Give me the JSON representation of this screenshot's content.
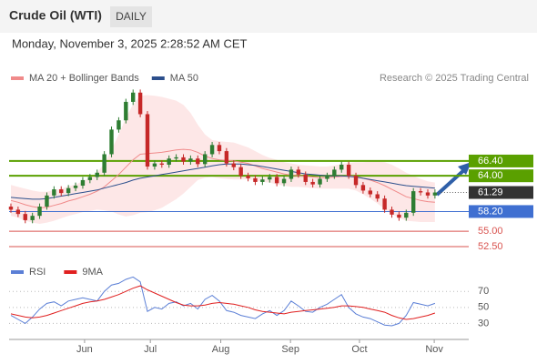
{
  "header": {
    "title": "Crude Oil (WTI)",
    "period": "DAILY",
    "timestamp": "Monday, November 3, 2025 2:28:52 AM CET",
    "credit": "Research © 2025 Trading Central"
  },
  "chart_data": [
    {
      "type": "candlestick",
      "x": [
        0,
        1,
        2,
        3,
        4,
        5,
        6,
        7,
        8,
        9,
        10,
        11,
        12,
        13,
        14,
        15,
        16,
        17,
        18,
        19,
        20,
        21,
        22,
        23,
        24,
        25,
        26,
        27,
        28,
        29,
        30,
        31,
        32,
        33,
        34,
        35,
        36,
        37,
        38,
        39,
        40,
        41,
        42,
        43,
        44,
        45,
        46,
        47,
        48,
        49,
        50,
        51,
        52,
        53,
        54,
        55,
        56,
        57,
        58,
        59
      ],
      "open": [
        59.0,
        58.5,
        57.8,
        56.8,
        57.5,
        59.0,
        60.8,
        61.8,
        61.2,
        62.0,
        62.4,
        63.3,
        63.8,
        64.5,
        67.5,
        71.5,
        73.0,
        76.0,
        77.5,
        74.0,
        65.5,
        66.0,
        65.8,
        66.8,
        67.0,
        66.3,
        66.8,
        65.9,
        67.5,
        69.0,
        68.0,
        66.0,
        65.4,
        64.0,
        63.6,
        63.0,
        63.4,
        63.8,
        62.8,
        63.5,
        65.0,
        64.2,
        63.0,
        62.6,
        63.5,
        64.0,
        65.0,
        65.8,
        64.0,
        62.5,
        61.6,
        61.0,
        60.3,
        58.5,
        57.7,
        57.2,
        58.0,
        61.5,
        61.3,
        60.8
      ],
      "high": [
        59.5,
        59.0,
        58.3,
        58.0,
        59.5,
        61.3,
        62.3,
        62.3,
        62.5,
        62.9,
        63.8,
        64.3,
        65.0,
        68.0,
        72.0,
        73.5,
        76.5,
        78.0,
        78.0,
        74.5,
        66.5,
        66.5,
        67.3,
        67.5,
        67.5,
        67.3,
        67.3,
        68.0,
        69.5,
        69.5,
        68.5,
        66.5,
        65.9,
        64.5,
        64.1,
        63.9,
        64.3,
        64.3,
        64.0,
        65.5,
        65.5,
        64.7,
        63.5,
        64.0,
        64.5,
        65.5,
        66.3,
        66.3,
        64.5,
        63.0,
        62.1,
        61.5,
        60.8,
        59.0,
        58.2,
        58.5,
        62.0,
        62.0,
        61.8,
        61.8
      ],
      "low": [
        58.0,
        57.3,
        56.3,
        56.3,
        57.0,
        58.5,
        60.3,
        60.7,
        60.7,
        61.5,
        61.9,
        62.8,
        63.3,
        64.0,
        67.0,
        71.0,
        72.5,
        75.5,
        73.5,
        65.0,
        65.0,
        65.3,
        65.3,
        66.3,
        65.8,
        65.8,
        65.4,
        65.4,
        67.0,
        67.5,
        65.5,
        64.9,
        63.5,
        63.1,
        62.5,
        62.5,
        62.9,
        62.3,
        62.3,
        63.0,
        63.7,
        62.5,
        62.1,
        62.1,
        63.0,
        63.5,
        64.5,
        63.5,
        62.0,
        61.1,
        60.5,
        59.8,
        58.0,
        57.2,
        56.7,
        56.7,
        57.5,
        60.8,
        60.3,
        60.3
      ],
      "close": [
        58.5,
        57.8,
        56.8,
        57.5,
        59.0,
        60.8,
        61.8,
        61.2,
        62.0,
        62.4,
        63.3,
        63.8,
        64.5,
        67.5,
        71.5,
        73.0,
        76.0,
        77.5,
        74.0,
        65.5,
        66.0,
        65.8,
        66.8,
        67.0,
        66.3,
        66.8,
        65.9,
        67.5,
        69.0,
        68.0,
        66.0,
        65.4,
        64.0,
        63.6,
        63.0,
        63.4,
        63.8,
        62.8,
        63.5,
        65.0,
        64.2,
        63.0,
        62.6,
        63.5,
        64.0,
        65.0,
        65.8,
        64.0,
        62.5,
        61.6,
        61.0,
        60.3,
        58.5,
        57.7,
        57.2,
        58.0,
        61.5,
        61.3,
        60.8,
        61.29
      ],
      "up_color": "#2e7d32",
      "down_color": "#c62828",
      "series": [
        {
          "name": "MA 20 + Bollinger Bands",
          "color": "#f08a8a",
          "band_color": "#fde3e3",
          "values": [
            60.0,
            59.7,
            59.3,
            59.0,
            58.8,
            58.9,
            59.2,
            59.5,
            59.9,
            60.2,
            60.6,
            61.0,
            61.5,
            62.2,
            63.2,
            64.2,
            65.4,
            66.6,
            67.5,
            67.6,
            67.7,
            67.8,
            68.0,
            68.2,
            68.3,
            68.2,
            67.8,
            67.2,
            66.8,
            66.6,
            66.5,
            66.4,
            66.2,
            66.0,
            65.6,
            65.2,
            64.9,
            64.6,
            64.3,
            64.1,
            64.0,
            63.9,
            63.8,
            63.7,
            63.7,
            63.8,
            63.9,
            64.0,
            63.9,
            63.6,
            63.3,
            62.9,
            62.4,
            61.8,
            61.2,
            60.6,
            60.3,
            60.0,
            59.8,
            59.7
          ],
          "upper": [
            62.5,
            62.2,
            61.9,
            61.6,
            61.4,
            61.4,
            61.7,
            61.9,
            62.3,
            62.6,
            63.1,
            63.7,
            64.5,
            66.0,
            68.2,
            70.7,
            73.4,
            75.6,
            77.0,
            77.1,
            77.0,
            76.8,
            76.5,
            76.2,
            75.5,
            74.2,
            72.3,
            70.7,
            69.8,
            69.6,
            69.5,
            69.4,
            69.0,
            68.6,
            68.0,
            67.4,
            66.9,
            66.6,
            66.2,
            66.0,
            65.8,
            65.7,
            65.6,
            65.5,
            65.5,
            65.7,
            65.9,
            66.1,
            66.2,
            66.2,
            66.3,
            66.3,
            66.2,
            65.8,
            65.2,
            64.5,
            64.0,
            63.5,
            63.1,
            62.9
          ],
          "lower": [
            57.5,
            57.2,
            56.7,
            56.4,
            56.2,
            56.4,
            56.7,
            57.1,
            57.5,
            57.8,
            58.1,
            58.3,
            58.5,
            58.4,
            58.2,
            57.7,
            57.4,
            57.6,
            58.0,
            58.1,
            58.4,
            58.8,
            59.5,
            60.2,
            61.1,
            62.2,
            63.3,
            63.7,
            63.8,
            63.6,
            63.5,
            63.4,
            63.4,
            63.4,
            63.2,
            63.0,
            62.9,
            62.6,
            62.4,
            62.2,
            62.2,
            62.1,
            62.0,
            61.9,
            61.9,
            61.9,
            61.9,
            61.9,
            61.6,
            61.0,
            60.3,
            59.5,
            58.6,
            57.8,
            57.2,
            56.7,
            56.6,
            56.5,
            56.5,
            56.5
          ]
        },
        {
          "name": "MA 50",
          "color": "#2c4f8c",
          "values": [
            60.5,
            60.4,
            60.3,
            60.2,
            60.2,
            60.3,
            60.5,
            60.7,
            60.9,
            61.1,
            61.3,
            61.5,
            61.7,
            62.0,
            62.3,
            62.6,
            62.9,
            63.3,
            63.6,
            63.8,
            64.0,
            64.2,
            64.4,
            64.6,
            64.8,
            65.0,
            65.2,
            65.4,
            65.6,
            65.8,
            65.9,
            65.9,
            65.9,
            65.8,
            65.7,
            65.5,
            65.3,
            65.1,
            64.9,
            64.7,
            64.5,
            64.3,
            64.2,
            64.1,
            64.0,
            64.0,
            64.0,
            63.9,
            63.8,
            63.6,
            63.4,
            63.2,
            63.0,
            62.8,
            62.6,
            62.4,
            62.3,
            62.2,
            62.1,
            62.0
          ]
        }
      ],
      "levels": [
        {
          "value": 66.4,
          "label": "66.40",
          "color": "#5aa000",
          "style": "box"
        },
        {
          "value": 64.0,
          "label": "64.00",
          "color": "#5aa000",
          "style": "box"
        },
        {
          "value": 61.29,
          "label": "61.29",
          "color": "#333333",
          "style": "current"
        },
        {
          "value": 58.2,
          "label": "58.20",
          "color": "#3f6fd1",
          "style": "box"
        },
        {
          "value": 55.0,
          "label": "55.00",
          "color": "#d9534f",
          "style": "text"
        },
        {
          "value": 52.5,
          "label": "52.50",
          "color": "#d9534f",
          "style": "text"
        }
      ],
      "xlim": [
        -0.25,
        63.7
      ],
      "ylim": [
        49.7,
        78.5
      ],
      "xticks": [
        {
          "value": 10.25,
          "label": "Jun"
        },
        {
          "value": 19.4,
          "label": "Jul"
        },
        {
          "value": 29.2,
          "label": "Aug"
        },
        {
          "value": 38.9,
          "label": "Sep"
        },
        {
          "value": 48.5,
          "label": "Oct"
        },
        {
          "value": 58.9,
          "label": "Nov"
        }
      ]
    },
    {
      "type": "line",
      "x": [
        0,
        1,
        2,
        3,
        4,
        5,
        6,
        7,
        8,
        9,
        10,
        11,
        12,
        13,
        14,
        15,
        16,
        17,
        18,
        19,
        20,
        21,
        22,
        23,
        24,
        25,
        26,
        27,
        28,
        29,
        30,
        31,
        32,
        33,
        34,
        35,
        36,
        37,
        38,
        39,
        40,
        41,
        42,
        43,
        44,
        45,
        46,
        47,
        48,
        49,
        50,
        51,
        52,
        53,
        54,
        55,
        56,
        57,
        58,
        59
      ],
      "series": [
        {
          "name": "RSI",
          "color": "#5b7fd6",
          "values": [
            40,
            35,
            30,
            38,
            48,
            55,
            57,
            52,
            58,
            60,
            62,
            60,
            58,
            70,
            78,
            80,
            85,
            88,
            82,
            45,
            50,
            48,
            55,
            57,
            52,
            55,
            48,
            60,
            65,
            58,
            46,
            44,
            40,
            38,
            36,
            42,
            46,
            40,
            46,
            58,
            52,
            45,
            44,
            50,
            54,
            60,
            66,
            50,
            42,
            38,
            36,
            32,
            28,
            27,
            30,
            40,
            56,
            54,
            52,
            55
          ]
        },
        {
          "name": "9MA",
          "color": "#e02020",
          "values": [
            42,
            40,
            38,
            37,
            38,
            40,
            43,
            46,
            49,
            52,
            55,
            57,
            58,
            60,
            63,
            66,
            70,
            74,
            77,
            72,
            68,
            64,
            60,
            56,
            53,
            52,
            52,
            53,
            55,
            56,
            55,
            54,
            52,
            50,
            47,
            45,
            44,
            43,
            42,
            44,
            45,
            46,
            47,
            48,
            49,
            50,
            52,
            52,
            51,
            50,
            48,
            46,
            44,
            40,
            37,
            35,
            36,
            38,
            40,
            43
          ]
        }
      ],
      "xlim": [
        -0.25,
        63.7
      ],
      "ylim": [
        10,
        93
      ],
      "yticks": [
        70,
        50,
        30
      ],
      "grid": true
    }
  ]
}
